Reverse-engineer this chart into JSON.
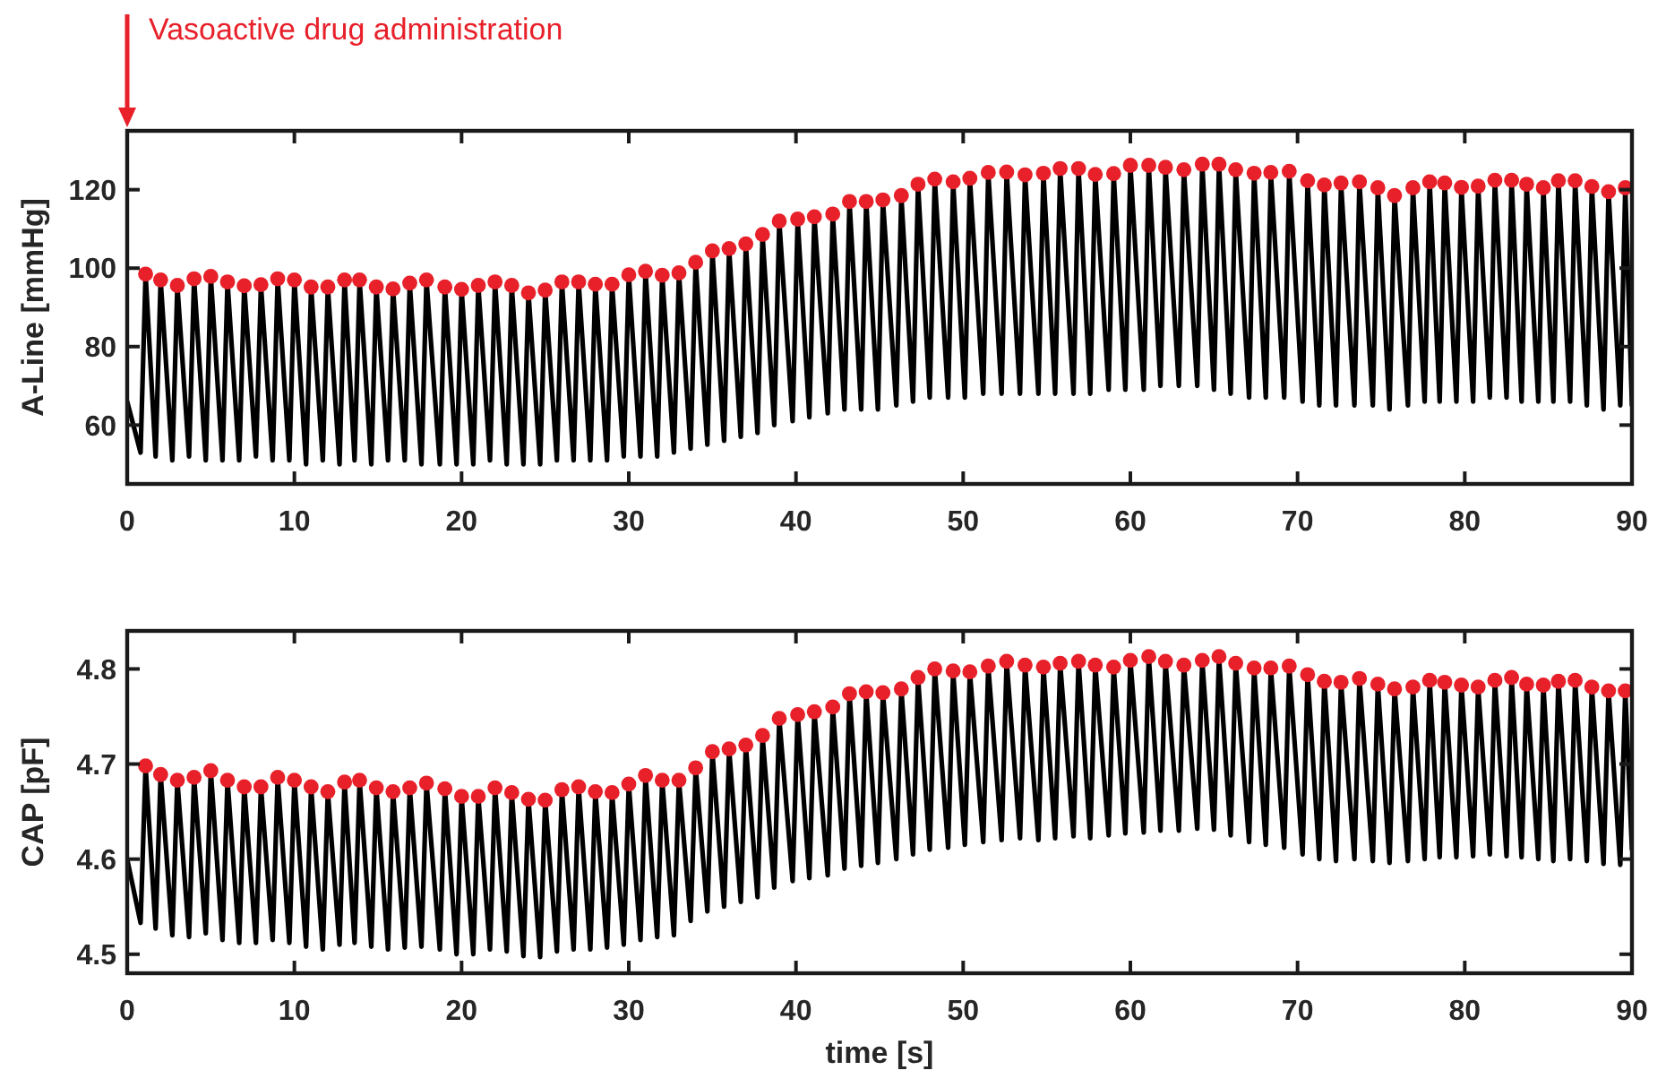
{
  "chart_data": [
    {
      "type": "line",
      "ylabel": "A-Line [mmHg]",
      "annotations": [
        "Vasoactive drug administration"
      ],
      "xlim": [
        0,
        90
      ],
      "xticks": [
        0,
        10,
        20,
        30,
        40,
        50,
        60,
        70,
        80,
        90
      ],
      "ylim": [
        45,
        135
      ],
      "yticks": [
        60,
        80,
        100,
        120
      ],
      "grid": false,
      "series": [
        {
          "type": "line",
          "color": "#000000",
          "marker": "none",
          "line_style": "solid",
          "x": [
            0,
            0.8,
            1.1,
            1.7,
            2.0,
            2.7,
            3.0,
            3.7,
            4.0,
            4.7,
            5.0,
            5.7,
            6.0,
            6.7,
            7.0,
            7.7,
            8.0,
            8.7,
            9.0,
            9.7,
            10.0,
            10.7,
            11.0,
            11.7,
            12.0,
            12.7,
            13.0,
            13.6,
            13.9,
            14.6,
            14.9,
            15.6,
            15.9,
            16.6,
            16.9,
            17.6,
            17.9,
            18.7,
            19.0,
            19.7,
            20.0,
            20.7,
            21.0,
            21.7,
            22.0,
            22.7,
            23.0,
            23.7,
            24.0,
            24.7,
            25.0,
            25.7,
            26.0,
            26.7,
            27.0,
            27.7,
            28.0,
            28.7,
            29.0,
            29.7,
            30.0,
            30.7,
            31.0,
            31.7,
            32.0,
            32.7,
            33.0,
            33.7,
            34.0,
            34.7,
            35.0,
            35.7,
            36.0,
            36.7,
            37.0,
            37.7,
            38.0,
            38.7,
            39.0,
            39.8,
            40.1,
            40.8,
            41.1,
            41.9,
            42.2,
            42.9,
            43.2,
            43.9,
            44.2,
            44.9,
            45.2,
            46.0,
            46.3,
            47.0,
            47.3,
            48.0,
            48.3,
            49.1,
            49.4,
            50.1,
            50.4,
            51.2,
            51.5,
            52.3,
            52.6,
            53.4,
            53.7,
            54.5,
            54.8,
            55.5,
            55.8,
            56.6,
            56.9,
            57.6,
            57.9,
            58.7,
            59.0,
            59.7,
            60.0,
            60.8,
            61.1,
            61.8,
            62.1,
            62.9,
            63.2,
            64.0,
            64.3,
            65.0,
            65.3,
            66.0,
            66.3,
            67.1,
            67.4,
            68.1,
            68.4,
            69.2,
            69.5,
            70.3,
            70.6,
            71.3,
            71.6,
            72.3,
            72.6,
            73.4,
            73.7,
            74.5,
            74.8,
            75.5,
            75.8,
            76.6,
            76.9,
            77.6,
            77.9,
            78.5,
            78.8,
            79.5,
            79.8,
            80.5,
            80.8,
            81.5,
            81.8,
            82.5,
            82.8,
            83.4,
            83.7,
            84.4,
            84.7,
            85.3,
            85.6,
            86.3,
            86.6,
            87.3,
            87.6,
            88.3,
            88.6,
            89.3,
            89.6,
            90
          ],
          "values": [
            66,
            53,
            98.5,
            52,
            97.0,
            51,
            95.6,
            52,
            97.3,
            51,
            97.9,
            51,
            96.5,
            51,
            95.5,
            52,
            95.8,
            51,
            97.3,
            51,
            97.0,
            50,
            95.2,
            51,
            95.2,
            50,
            97.0,
            51,
            97.0,
            50,
            95.2,
            51,
            94.7,
            51,
            96.2,
            50,
            97.0,
            50,
            95.2,
            50,
            94.6,
            50,
            95.6,
            51,
            96.5,
            50,
            95.6,
            50,
            93.7,
            50,
            94.4,
            51,
            96.5,
            51,
            96.5,
            51,
            95.9,
            51,
            95.9,
            52,
            98.3,
            52,
            99.2,
            52,
            98.2,
            53,
            98.8,
            54,
            101.5,
            55,
            104.4,
            56,
            105.0,
            57,
            106.2,
            58,
            108.6,
            60,
            112.0,
            61,
            112.5,
            62,
            113.1,
            63,
            113.8,
            64,
            117.0,
            64,
            117.0,
            64,
            117.4,
            65,
            118.5,
            66,
            121.4,
            67,
            122.7,
            67,
            122.0,
            67,
            122.9,
            68,
            124.4,
            68,
            124.5,
            68,
            123.8,
            68,
            124.2,
            68,
            125.4,
            68,
            125.4,
            68,
            123.9,
            69,
            124.1,
            69,
            126.2,
            69,
            126.2,
            70,
            125.7,
            70,
            125.1,
            70,
            126.5,
            69,
            126.5,
            68,
            125.1,
            67,
            124.2,
            67,
            124.4,
            67,
            124.7,
            66,
            122.3,
            65,
            121.2,
            65,
            121.7,
            65,
            122.0,
            65,
            120.5,
            64,
            118.5,
            65,
            120.5,
            66,
            122.0,
            66,
            121.7,
            66,
            120.6,
            66,
            120.9,
            67,
            122.4,
            67,
            122.4,
            66,
            121.4,
            66,
            120.5,
            66,
            122.3,
            66,
            122.3,
            65,
            120.8,
            64,
            119.5,
            65,
            120.5,
            65
          ]
        },
        {
          "type": "scatter",
          "color": "#e8202a",
          "marker": "circle",
          "x": [
            1.1,
            2.0,
            3.0,
            4.0,
            5.0,
            6.0,
            7.0,
            8.0,
            9.0,
            10.0,
            11.0,
            12.0,
            13.0,
            13.9,
            14.9,
            15.9,
            16.9,
            17.9,
            19.0,
            20.0,
            21.0,
            22.0,
            23.0,
            24.0,
            25.0,
            26.0,
            27.0,
            28.0,
            29.0,
            30.0,
            31.0,
            32.0,
            33.0,
            34.0,
            35.0,
            36.0,
            37.0,
            38.0,
            39.0,
            40.1,
            41.1,
            42.2,
            43.2,
            44.2,
            45.2,
            46.3,
            47.3,
            48.3,
            49.4,
            50.4,
            51.5,
            52.6,
            53.7,
            54.8,
            55.8,
            56.9,
            57.9,
            59.0,
            60.0,
            61.1,
            62.1,
            63.2,
            64.3,
            65.3,
            66.3,
            67.4,
            68.4,
            69.5,
            70.6,
            71.6,
            72.6,
            73.7,
            74.8,
            75.8,
            76.9,
            77.9,
            78.8,
            79.8,
            80.8,
            81.8,
            82.8,
            83.7,
            84.7,
            85.6,
            86.6,
            87.6,
            88.6,
            89.6
          ],
          "values": [
            98.5,
            97.0,
            95.6,
            97.3,
            97.9,
            96.5,
            95.5,
            95.8,
            97.3,
            97.0,
            95.2,
            95.2,
            97.0,
            97.0,
            95.2,
            94.7,
            96.2,
            97.0,
            95.2,
            94.6,
            95.6,
            96.5,
            95.6,
            93.7,
            94.4,
            96.5,
            96.5,
            95.9,
            95.9,
            98.3,
            99.2,
            98.2,
            98.8,
            101.5,
            104.4,
            105.0,
            106.2,
            108.6,
            112.0,
            112.5,
            113.1,
            113.8,
            117.0,
            117.0,
            117.4,
            118.5,
            121.4,
            122.7,
            122.0,
            122.9,
            124.4,
            124.5,
            123.8,
            124.2,
            125.4,
            125.4,
            123.9,
            124.1,
            126.2,
            126.2,
            125.7,
            125.1,
            126.5,
            126.5,
            125.1,
            124.2,
            124.4,
            124.7,
            122.3,
            121.2,
            121.7,
            122.0,
            120.5,
            118.5,
            120.5,
            122.0,
            121.7,
            120.6,
            120.9,
            122.4,
            122.4,
            121.4,
            120.5,
            122.3,
            122.3,
            120.8,
            119.5,
            120.5
          ]
        }
      ]
    },
    {
      "type": "line",
      "ylabel": "CAP [pF]",
      "xlabel": "time [s]",
      "xlim": [
        0,
        90
      ],
      "xticks": [
        0,
        10,
        20,
        30,
        40,
        50,
        60,
        70,
        80,
        90
      ],
      "ylim": [
        4.48,
        4.84
      ],
      "yticks": [
        4.5,
        4.6,
        4.7,
        4.8
      ],
      "grid": false,
      "series": [
        {
          "type": "line",
          "color": "#000000",
          "marker": "none",
          "line_style": "solid",
          "x": [
            0,
            0.8,
            1.1,
            1.7,
            2.0,
            2.7,
            3.0,
            3.7,
            4.0,
            4.7,
            5.0,
            5.7,
            6.0,
            6.7,
            7.0,
            7.7,
            8.0,
            8.7,
            9.0,
            9.7,
            10.0,
            10.7,
            11.0,
            11.7,
            12.0,
            12.7,
            13.0,
            13.6,
            13.9,
            14.6,
            14.9,
            15.6,
            15.9,
            16.6,
            16.9,
            17.6,
            17.9,
            18.7,
            19.0,
            19.7,
            20.0,
            20.7,
            21.0,
            21.7,
            22.0,
            22.7,
            23.0,
            23.7,
            24.0,
            24.7,
            25.0,
            25.7,
            26.0,
            26.7,
            27.0,
            27.7,
            28.0,
            28.7,
            29.0,
            29.7,
            30.0,
            30.7,
            31.0,
            31.7,
            32.0,
            32.7,
            33.0,
            33.7,
            34.0,
            34.7,
            35.0,
            35.7,
            36.0,
            36.7,
            37.0,
            37.7,
            38.0,
            38.7,
            39.0,
            39.8,
            40.1,
            40.8,
            41.1,
            41.9,
            42.2,
            42.9,
            43.2,
            43.9,
            44.2,
            44.9,
            45.2,
            46.0,
            46.3,
            47.0,
            47.3,
            48.0,
            48.3,
            49.1,
            49.4,
            50.1,
            50.4,
            51.2,
            51.5,
            52.3,
            52.6,
            53.4,
            53.7,
            54.5,
            54.8,
            55.5,
            55.8,
            56.6,
            56.9,
            57.6,
            57.9,
            58.7,
            59.0,
            59.7,
            60.0,
            60.8,
            61.1,
            61.8,
            62.1,
            62.9,
            63.2,
            64.0,
            64.3,
            65.0,
            65.3,
            66.0,
            66.3,
            67.1,
            67.4,
            68.1,
            68.4,
            69.2,
            69.5,
            70.3,
            70.6,
            71.3,
            71.6,
            72.3,
            72.6,
            73.4,
            73.7,
            74.5,
            74.8,
            75.5,
            75.8,
            76.6,
            76.9,
            77.6,
            77.9,
            78.5,
            78.8,
            79.5,
            79.8,
            80.5,
            80.8,
            81.5,
            81.8,
            82.5,
            82.8,
            83.4,
            83.7,
            84.4,
            84.7,
            85.3,
            85.6,
            86.3,
            86.6,
            87.3,
            87.6,
            88.3,
            88.6,
            89.3,
            89.6,
            90
          ],
          "values": [
            4.6,
            4.533,
            4.698,
            4.527,
            4.689,
            4.52,
            4.683,
            4.518,
            4.686,
            4.522,
            4.693,
            4.515,
            4.683,
            4.512,
            4.676,
            4.512,
            4.676,
            4.515,
            4.686,
            4.512,
            4.683,
            4.508,
            4.676,
            4.505,
            4.671,
            4.51,
            4.681,
            4.512,
            4.683,
            4.508,
            4.675,
            4.505,
            4.671,
            4.507,
            4.675,
            4.508,
            4.68,
            4.505,
            4.674,
            4.5,
            4.666,
            4.5,
            4.666,
            4.505,
            4.675,
            4.503,
            4.67,
            4.498,
            4.663,
            4.497,
            4.662,
            4.503,
            4.673,
            4.505,
            4.676,
            4.505,
            4.671,
            4.507,
            4.67,
            4.51,
            4.679,
            4.515,
            4.688,
            4.518,
            4.683,
            4.52,
            4.683,
            4.535,
            4.696,
            4.545,
            4.713,
            4.55,
            4.716,
            4.555,
            4.72,
            4.56,
            4.73,
            4.57,
            4.748,
            4.577,
            4.752,
            4.58,
            4.755,
            4.583,
            4.76,
            4.59,
            4.774,
            4.593,
            4.776,
            4.596,
            4.775,
            4.6,
            4.779,
            4.605,
            4.791,
            4.61,
            4.8,
            4.612,
            4.798,
            4.615,
            4.797,
            4.618,
            4.803,
            4.62,
            4.808,
            4.622,
            4.804,
            4.62,
            4.802,
            4.622,
            4.806,
            4.624,
            4.808,
            4.622,
            4.804,
            4.625,
            4.802,
            4.627,
            4.809,
            4.628,
            4.813,
            4.63,
            4.808,
            4.63,
            4.804,
            4.632,
            4.809,
            4.631,
            4.813,
            4.625,
            4.806,
            4.618,
            4.801,
            4.615,
            4.801,
            4.612,
            4.803,
            4.605,
            4.794,
            4.6,
            4.787,
            4.598,
            4.786,
            4.6,
            4.79,
            4.598,
            4.784,
            4.596,
            4.779,
            4.598,
            4.781,
            4.6,
            4.788,
            4.602,
            4.786,
            4.602,
            4.783,
            4.603,
            4.781,
            4.605,
            4.788,
            4.603,
            4.791,
            4.602,
            4.784,
            4.6,
            4.783,
            4.598,
            4.787,
            4.6,
            4.788,
            4.598,
            4.781,
            4.595,
            4.777,
            4.594,
            4.777,
            4.61
          ]
        },
        {
          "type": "scatter",
          "color": "#e8202a",
          "marker": "circle",
          "x": [
            1.1,
            2.0,
            3.0,
            4.0,
            5.0,
            6.0,
            7.0,
            8.0,
            9.0,
            10.0,
            11.0,
            12.0,
            13.0,
            13.9,
            14.9,
            15.9,
            16.9,
            17.9,
            19.0,
            20.0,
            21.0,
            22.0,
            23.0,
            24.0,
            25.0,
            26.0,
            27.0,
            28.0,
            29.0,
            30.0,
            31.0,
            32.0,
            33.0,
            34.0,
            35.0,
            36.0,
            37.0,
            38.0,
            39.0,
            40.1,
            41.1,
            42.2,
            43.2,
            44.2,
            45.2,
            46.3,
            47.3,
            48.3,
            49.4,
            50.4,
            51.5,
            52.6,
            53.7,
            54.8,
            55.8,
            56.9,
            57.9,
            59.0,
            60.0,
            61.1,
            62.1,
            63.2,
            64.3,
            65.3,
            66.3,
            67.4,
            68.4,
            69.5,
            70.6,
            71.6,
            72.6,
            73.7,
            74.8,
            75.8,
            76.9,
            77.9,
            78.8,
            79.8,
            80.8,
            81.8,
            82.8,
            83.7,
            84.7,
            85.6,
            86.6,
            87.6,
            88.6,
            89.6
          ],
          "values": [
            4.698,
            4.689,
            4.683,
            4.686,
            4.693,
            4.683,
            4.676,
            4.676,
            4.686,
            4.683,
            4.676,
            4.671,
            4.681,
            4.683,
            4.675,
            4.671,
            4.675,
            4.68,
            4.674,
            4.666,
            4.666,
            4.675,
            4.67,
            4.663,
            4.662,
            4.673,
            4.676,
            4.671,
            4.67,
            4.679,
            4.688,
            4.683,
            4.683,
            4.696,
            4.713,
            4.716,
            4.72,
            4.73,
            4.748,
            4.752,
            4.755,
            4.76,
            4.774,
            4.776,
            4.775,
            4.779,
            4.791,
            4.8,
            4.798,
            4.797,
            4.803,
            4.808,
            4.804,
            4.802,
            4.806,
            4.808,
            4.804,
            4.802,
            4.809,
            4.813,
            4.808,
            4.804,
            4.809,
            4.813,
            4.806,
            4.801,
            4.801,
            4.803,
            4.794,
            4.787,
            4.786,
            4.79,
            4.784,
            4.779,
            4.781,
            4.788,
            4.786,
            4.783,
            4.781,
            4.788,
            4.791,
            4.784,
            4.783,
            4.787,
            4.788,
            4.781,
            4.777,
            4.777
          ]
        }
      ]
    }
  ]
}
